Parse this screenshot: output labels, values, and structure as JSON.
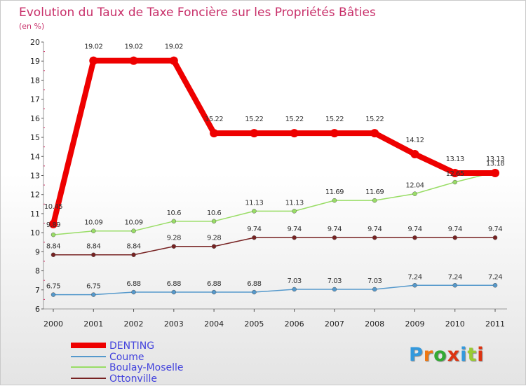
{
  "chart_data": {
    "type": "line",
    "title": "Evolution du Taux de Taxe Foncière sur les Propriétés Bâties",
    "ylabel": "(en %)",
    "xlabel": "",
    "ylim": [
      6,
      20
    ],
    "yticks": [
      6,
      7,
      8,
      9,
      10,
      11,
      12,
      13,
      14,
      15,
      16,
      17,
      18,
      19,
      20
    ],
    "categories": [
      "2000",
      "2001",
      "2002",
      "2003",
      "2004",
      "2005",
      "2006",
      "2007",
      "2008",
      "2009",
      "2010",
      "2011"
    ],
    "series": [
      {
        "name": "DENTING",
        "color": "#ee0000",
        "values": [
          10.45,
          19.02,
          19.02,
          19.02,
          15.22,
          15.22,
          15.22,
          15.22,
          15.22,
          14.12,
          13.13,
          13.13
        ],
        "labels": [
          "10.45",
          "19.02",
          "19.02",
          "19.02",
          "15.22",
          "15.22",
          "15.22",
          "15.22",
          "15.22",
          "14.12",
          "13.13",
          "13.13"
        ]
      },
      {
        "name": "Coume",
        "color": "#5599cc",
        "values": [
          6.75,
          6.75,
          6.88,
          6.88,
          6.88,
          6.88,
          7.03,
          7.03,
          7.03,
          7.24,
          7.24,
          7.24
        ],
        "labels": [
          "6.75",
          "6.75",
          "6.88",
          "6.88",
          "6.88",
          "6.88",
          "7.03",
          "7.03",
          "7.03",
          "7.24",
          "7.24",
          "7.24"
        ]
      },
      {
        "name": "Boulay-Moselle",
        "color": "#99dd66",
        "values": [
          9.89,
          10.09,
          10.09,
          10.6,
          10.6,
          11.13,
          11.13,
          11.69,
          11.69,
          12.04,
          12.65,
          13.18
        ],
        "labels": [
          "9.89",
          "10.09",
          "10.09",
          "10.6",
          "10.6",
          "11.13",
          "11.13",
          "11.69",
          "11.69",
          "12.04",
          "12.65",
          "13.18"
        ]
      },
      {
        "name": "Ottonville",
        "color": "#772222",
        "values": [
          8.84,
          8.84,
          8.84,
          9.28,
          9.28,
          9.74,
          9.74,
          9.74,
          9.74,
          9.74,
          9.74,
          9.74
        ],
        "labels": [
          "8.84",
          "8.84",
          "8.84",
          "9.28",
          "9.28",
          "9.74",
          "9.74",
          "9.74",
          "9.74",
          "9.74",
          "9.74",
          "9.74"
        ]
      }
    ],
    "legend_position": "bottom-left",
    "grid": false
  },
  "logo": {
    "letters": [
      "P",
      "r",
      "o",
      "x",
      "i",
      "t",
      "i"
    ],
    "colors": [
      "#3399dd",
      "#ee7711",
      "#33aa33",
      "#dd3311",
      "#3399dd",
      "#99cc33",
      "#dd3311"
    ]
  }
}
